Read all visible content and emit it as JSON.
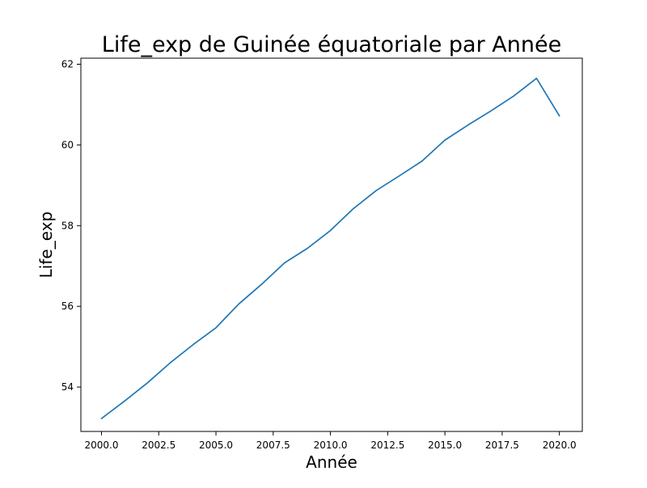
{
  "chart_data": {
    "type": "line",
    "title": "Life_exp de Guinée équatoriale par Année",
    "xlabel": "Année",
    "ylabel": "Life_exp",
    "xlim": [
      1999.1,
      2021.0
    ],
    "ylim": [
      52.9,
      62.15
    ],
    "x_ticks": [
      2000.0,
      2002.5,
      2005.0,
      2007.5,
      2010.0,
      2012.5,
      2015.0,
      2017.5,
      2020.0
    ],
    "x_tick_labels": [
      "2000.0",
      "2002.5",
      "2005.0",
      "2007.5",
      "2010.0",
      "2012.5",
      "2015.0",
      "2017.5",
      "2020.0"
    ],
    "y_ticks": [
      54,
      56,
      58,
      60,
      62
    ],
    "y_tick_labels": [
      "54",
      "56",
      "58",
      "60",
      "62"
    ],
    "grid": false,
    "legend": "none",
    "series": [
      {
        "color": "#1f77b4",
        "x": [
          2000,
          2001,
          2002,
          2003,
          2004,
          2005,
          2006,
          2007,
          2008,
          2009,
          2010,
          2011,
          2012,
          2013,
          2014,
          2015,
          2016,
          2017,
          2018,
          2019,
          2020
        ],
        "y": [
          53.22,
          53.65,
          54.1,
          54.6,
          55.05,
          55.47,
          56.06,
          56.55,
          57.08,
          57.44,
          57.88,
          58.42,
          58.87,
          59.23,
          59.6,
          60.12,
          60.49,
          60.84,
          61.21,
          61.65,
          60.72
        ]
      }
    ]
  }
}
